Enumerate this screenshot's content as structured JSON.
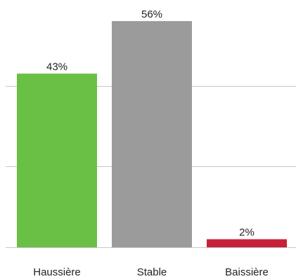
{
  "chart_data": {
    "type": "bar",
    "categories": [
      "Haussière",
      "Stable",
      "Baissière"
    ],
    "values": [
      43,
      56,
      2
    ],
    "value_labels": [
      "43%",
      "56%",
      "2%"
    ],
    "colors": [
      "#6abf45",
      "#9b9b9b",
      "#c8203a"
    ],
    "ylim": [
      0,
      60
    ],
    "grid": true,
    "title": "",
    "xlabel": "",
    "ylabel": ""
  }
}
